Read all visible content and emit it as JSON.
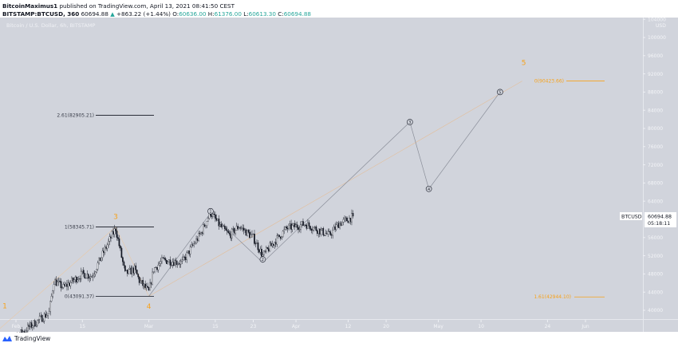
{
  "header": {
    "author": "BitcoinMaximus1",
    "published_text": "published on TradingView.com, April 13, 2021 08:41:50 CEST",
    "symbol": "BITSTAMP:BTCUSD, 360",
    "last": "60694.88",
    "change": "+863.22 (+1.44%)",
    "o_label": "O:",
    "o": "60636.00",
    "h_label": "H:",
    "h": "61376.00",
    "l_label": "L:",
    "l": "60613.30",
    "c_label": "C:",
    "c": "60694.88"
  },
  "chart_title": "Bitcoin / U.S. Dollar, 6h, BITSTAMP",
  "price_axis": {
    "currency": "USD",
    "ticks": [
      "104000",
      "100000",
      "96000",
      "92000",
      "88000",
      "84000",
      "80000",
      "76000",
      "72000",
      "68000",
      "64000",
      "56000",
      "52000",
      "48000",
      "44000",
      "40000"
    ],
    "symbol_label": "BTCUSD",
    "last_price": "60694.88",
    "countdown": "05:18:11"
  },
  "time_axis": {
    "ticks": [
      {
        "label": "Feb",
        "date": "2021-02-01"
      },
      {
        "label": "15",
        "date": "2021-02-15"
      },
      {
        "label": "Mar",
        "date": "2021-03-01"
      },
      {
        "label": "15",
        "date": "2021-03-15"
      },
      {
        "label": "23",
        "date": "2021-03-23"
      },
      {
        "label": "Apr",
        "date": "2021-04-01"
      },
      {
        "label": "12",
        "date": "2021-04-12"
      },
      {
        "label": "20",
        "date": "2021-04-20"
      },
      {
        "label": "May",
        "date": "2021-05-01"
      },
      {
        "label": "10",
        "date": "2021-05-10"
      },
      {
        "label": "24",
        "date": "2021-05-24"
      },
      {
        "label": "Jun",
        "date": "2021-06-01"
      }
    ]
  },
  "colors": {
    "background": "#d1d4dc",
    "candle": "#131722",
    "accent_orange": "#f7a21b",
    "positive": "#26a69a"
  },
  "chart_data": {
    "type": "candlestick",
    "interval": "6h",
    "ylim": [
      38000,
      106000
    ],
    "price_path": [
      {
        "date": "2021-01-29",
        "price": 32000
      },
      {
        "date": "2021-02-06",
        "price": 38000
      },
      {
        "date": "2021-02-08",
        "price": 39500
      },
      {
        "date": "2021-02-09",
        "price": 46500
      },
      {
        "date": "2021-02-11",
        "price": 45000
      },
      {
        "date": "2021-02-15",
        "price": 48000
      },
      {
        "date": "2021-02-17",
        "price": 47500
      },
      {
        "date": "2021-02-21",
        "price": 56000
      },
      {
        "date": "2021-02-22",
        "price": 58000
      },
      {
        "date": "2021-02-23",
        "price": 53000
      },
      {
        "date": "2021-02-24",
        "price": 48000
      },
      {
        "date": "2021-02-26",
        "price": 49000
      },
      {
        "date": "2021-02-27",
        "price": 46500
      },
      {
        "date": "2021-03-01",
        "price": 44000
      },
      {
        "date": "2021-03-02",
        "price": 49000
      },
      {
        "date": "2021-03-04",
        "price": 51000
      },
      {
        "date": "2021-03-08",
        "price": 50500
      },
      {
        "date": "2021-03-12",
        "price": 57000
      },
      {
        "date": "2021-03-14",
        "price": 61500
      },
      {
        "date": "2021-03-16",
        "price": 58500
      },
      {
        "date": "2021-03-18",
        "price": 56500
      },
      {
        "date": "2021-03-20",
        "price": 58500
      },
      {
        "date": "2021-03-23",
        "price": 56000
      },
      {
        "date": "2021-03-25",
        "price": 52000
      },
      {
        "date": "2021-03-27",
        "price": 54500
      },
      {
        "date": "2021-03-30",
        "price": 58000
      },
      {
        "date": "2021-04-03",
        "price": 59000
      },
      {
        "date": "2021-04-06",
        "price": 57500
      },
      {
        "date": "2021-04-08",
        "price": 56500
      },
      {
        "date": "2021-04-10",
        "price": 59000
      },
      {
        "date": "2021-04-12",
        "price": 60000
      },
      {
        "date": "2021-04-13",
        "price": 60694.88
      }
    ],
    "fib_levels": [
      {
        "label": "2.61(82905.21)",
        "price": 82905.21,
        "color": "#131722"
      },
      {
        "label": "1(58345.71)",
        "price": 58345.71,
        "color": "#131722"
      },
      {
        "label": "0(43091.37)",
        "price": 43091.37,
        "color": "#131722"
      },
      {
        "label": "0(90423.66)",
        "price": 90423.66,
        "color": "#f7a21b"
      },
      {
        "label": "1.61(42944.10)",
        "price": 42944.1,
        "color": "#f7a21b"
      }
    ],
    "wave_labels_major": [
      {
        "label": "1",
        "date": "2021-01-31",
        "price": 41000
      },
      {
        "label": "3",
        "date": "2021-02-22",
        "price": 60600
      },
      {
        "label": "4",
        "date": "2021-03-01",
        "price": 40900
      },
      {
        "label": "5",
        "date": "2021-05-19",
        "price": 94500
      }
    ],
    "wave_points_minor": [
      {
        "label": "1",
        "date": "2021-03-14",
        "price": 61800
      },
      {
        "label": "2",
        "date": "2021-03-25",
        "price": 51200
      },
      {
        "label": "3",
        "date": "2021-04-25",
        "price": 81400
      },
      {
        "label": "4",
        "date": "2021-04-29",
        "price": 66700
      },
      {
        "label": "5",
        "date": "2021-05-14",
        "price": 88000
      }
    ],
    "wave_start": {
      "date": "2021-03-01",
      "price": 43091.37
    }
  },
  "footer": {
    "brand": "TradingView"
  }
}
